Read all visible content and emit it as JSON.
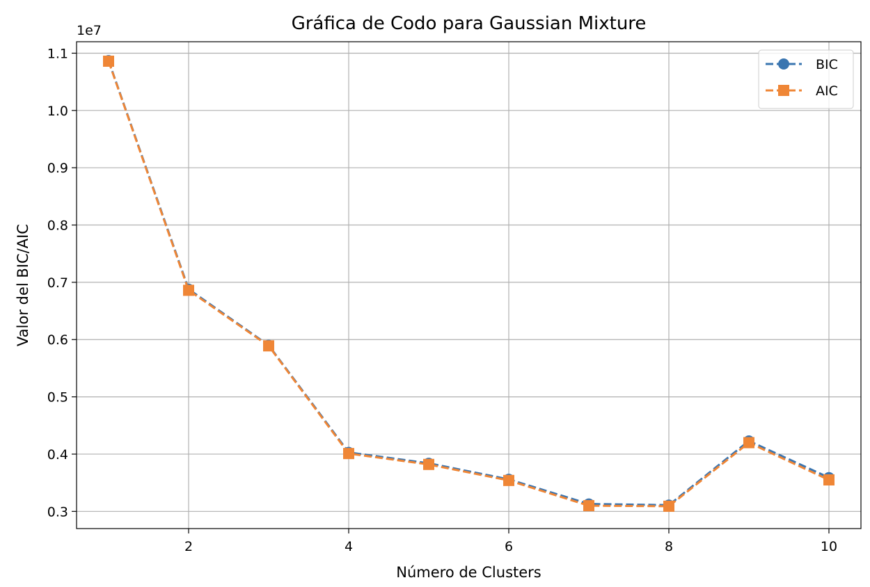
{
  "chart_data": {
    "type": "line",
    "title": "Gráfica de Codo para Gaussian Mixture",
    "xlabel": "Número de Clusters",
    "ylabel": "Valor del BIC/AIC",
    "y_offset_label": "1e7",
    "xlim": [
      0.6,
      10.4
    ],
    "ylim": [
      0.27,
      1.12
    ],
    "grid": true,
    "legend_position": "top-right",
    "x_ticks": [
      2,
      4,
      6,
      8,
      10
    ],
    "x_tick_labels": [
      "2",
      "4",
      "6",
      "8",
      "10"
    ],
    "y_ticks": [
      0.3,
      0.4,
      0.5,
      0.6,
      0.7,
      0.8,
      0.9,
      1.0,
      1.1
    ],
    "y_tick_labels": [
      "0.3",
      "0.4",
      "0.5",
      "0.6",
      "0.7",
      "0.8",
      "0.9",
      "1.0",
      "1.1"
    ],
    "x": [
      1,
      2,
      3,
      4,
      5,
      6,
      7,
      8,
      9,
      10
    ],
    "series": [
      {
        "name": "BIC",
        "color": "#3a75b0",
        "marker": "circle",
        "line_style": "dashed",
        "values": [
          1.087,
          0.688,
          0.59,
          0.403,
          0.384,
          0.356,
          0.313,
          0.311,
          0.423,
          0.359
        ]
      },
      {
        "name": "AIC",
        "color": "#ef8636",
        "marker": "square",
        "line_style": "dashed",
        "values": [
          1.086,
          0.686,
          0.589,
          0.401,
          0.382,
          0.354,
          0.31,
          0.309,
          0.42,
          0.355
        ]
      }
    ]
  }
}
